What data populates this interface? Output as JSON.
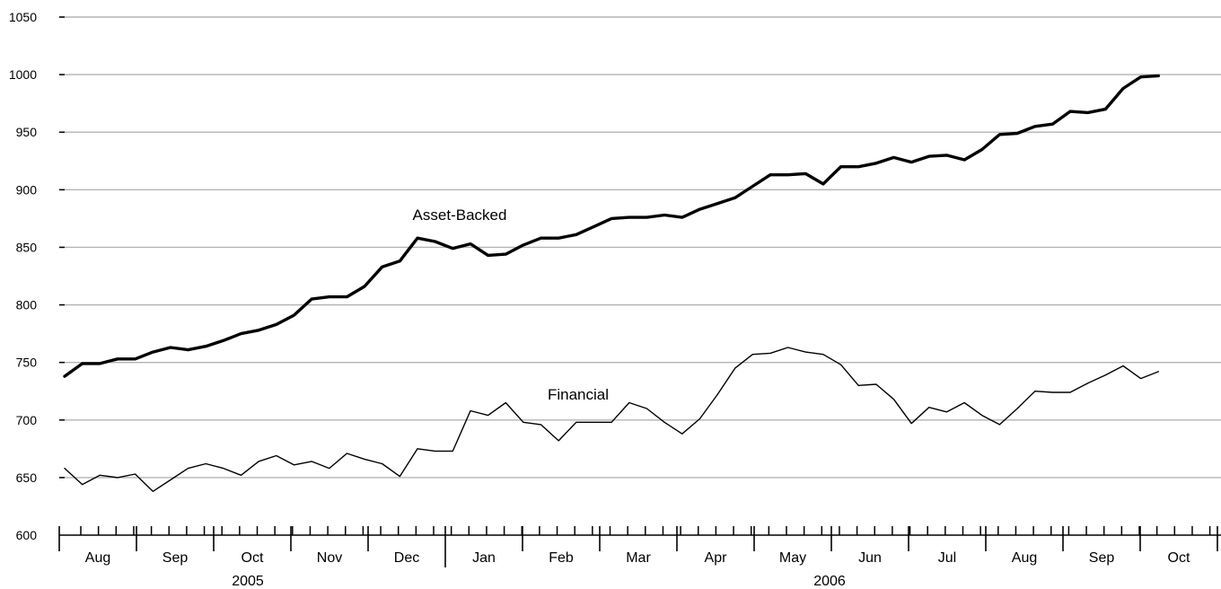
{
  "chart_data": {
    "type": "line",
    "title": "",
    "xlabel": "",
    "ylabel": "",
    "ylim": [
      600,
      1050
    ],
    "yticks": [
      600,
      650,
      700,
      750,
      800,
      850,
      900,
      950,
      1000,
      1050
    ],
    "grid": true,
    "legend": "none",
    "x_start": "2005-07-25",
    "x_step": "weekly",
    "months": [
      {
        "label": "Aug",
        "year": "2005"
      },
      {
        "label": "Sep",
        "year": "2005"
      },
      {
        "label": "Oct",
        "year": "2005"
      },
      {
        "label": "Nov",
        "year": "2005"
      },
      {
        "label": "Dec",
        "year": "2005"
      },
      {
        "label": "Jan",
        "year": "2006"
      },
      {
        "label": "Feb",
        "year": "2006"
      },
      {
        "label": "Mar",
        "year": "2006"
      },
      {
        "label": "Apr",
        "year": "2006"
      },
      {
        "label": "May",
        "year": "2006"
      },
      {
        "label": "Jun",
        "year": "2006"
      },
      {
        "label": "Jul",
        "year": "2006"
      },
      {
        "label": "Aug",
        "year": "2006"
      },
      {
        "label": "Sep",
        "year": "2006"
      },
      {
        "label": "Oct",
        "year": "2006"
      }
    ],
    "years": [
      "2005",
      "2006"
    ],
    "series": [
      {
        "name": "Asset-Backed",
        "annotation": "Asset-Backed",
        "style": "thick",
        "values": [
          738,
          749,
          749,
          753,
          753,
          759,
          763,
          761,
          764,
          769,
          775,
          778,
          783,
          791,
          805,
          807,
          807,
          816,
          833,
          838,
          858,
          855,
          849,
          853,
          843,
          844,
          852,
          858,
          858,
          861,
          868,
          875,
          876,
          876,
          878,
          876,
          883,
          888,
          893,
          903,
          913,
          913,
          914,
          905,
          920,
          920,
          923,
          928,
          924,
          929,
          930,
          926,
          935,
          948,
          949,
          955,
          957,
          968,
          967,
          970,
          988,
          998,
          999
        ]
      },
      {
        "name": "Financial",
        "annotation": "Financial",
        "style": "thin",
        "values": [
          658,
          644,
          652,
          650,
          653,
          638,
          648,
          658,
          662,
          658,
          652,
          664,
          669,
          661,
          664,
          658,
          671,
          666,
          662,
          651,
          675,
          673,
          673,
          708,
          704,
          715,
          698,
          696,
          682,
          698,
          698,
          698,
          715,
          710,
          698,
          688,
          701,
          722,
          745,
          757,
          758,
          763,
          759,
          757,
          748,
          730,
          731,
          718,
          697,
          711,
          707,
          715,
          704,
          696,
          710,
          725,
          724,
          724,
          732,
          739,
          747,
          736,
          742
        ]
      }
    ]
  }
}
